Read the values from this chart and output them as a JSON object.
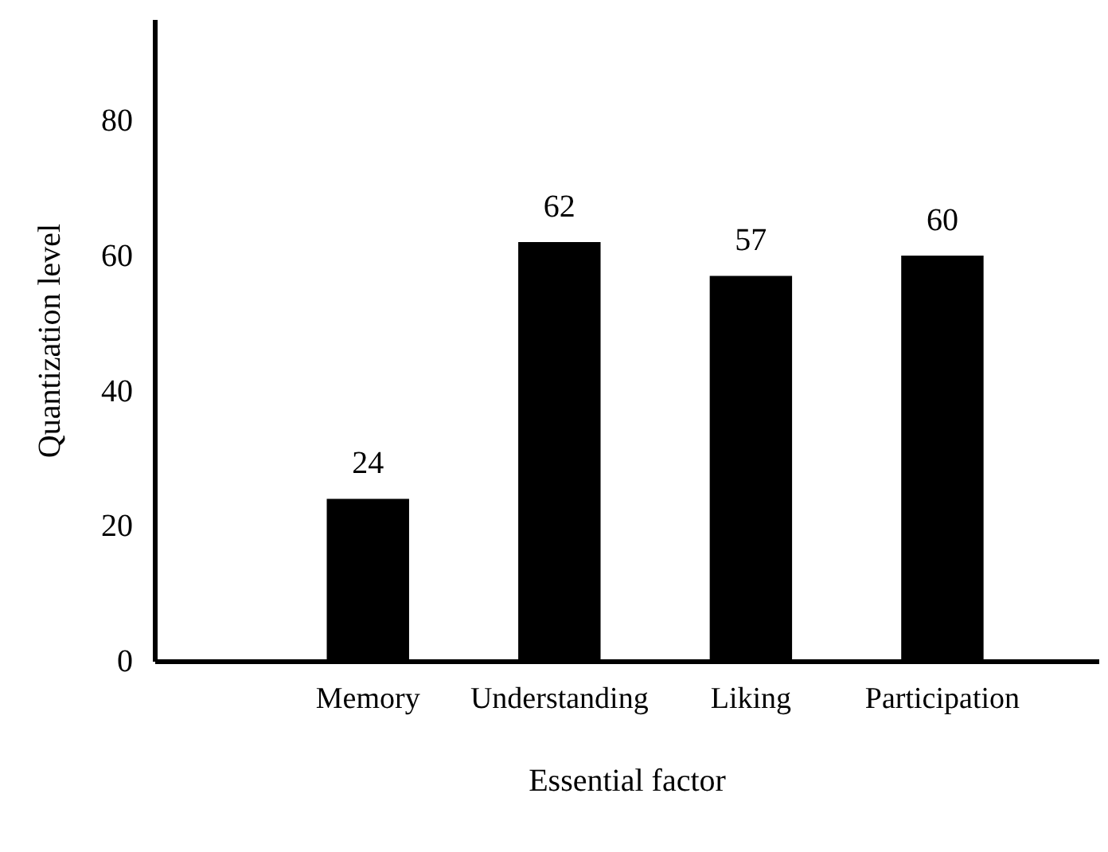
{
  "chart_data": {
    "type": "bar",
    "xlabel": "Essential factor",
    "ylabel": "Quantization level",
    "categories": [
      "Memory",
      "Understanding",
      "Liking",
      "Participation"
    ],
    "values": [
      24,
      62,
      57,
      60
    ],
    "color": "#000000",
    "ylim": [
      0,
      95
    ],
    "yticks": [
      0,
      20,
      40,
      60,
      80
    ],
    "grid": false,
    "data_labels": true
  }
}
